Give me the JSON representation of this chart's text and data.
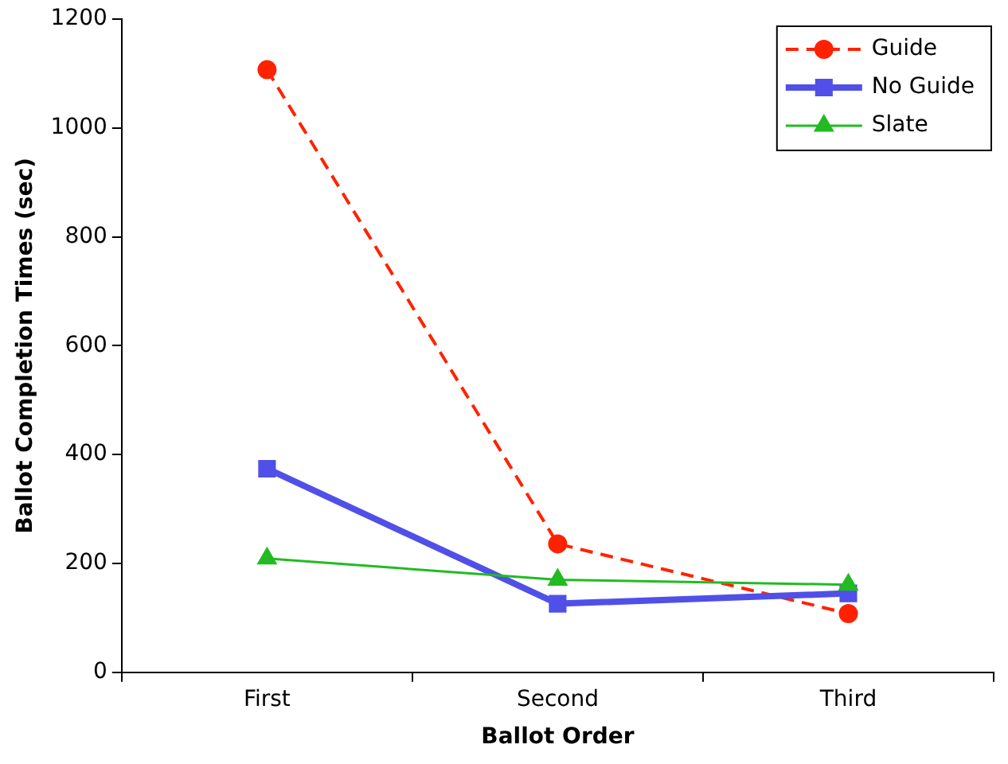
{
  "chart_data": {
    "type": "line",
    "xlabel": "Ballot Order",
    "ylabel": "Ballot Completion Times (sec)",
    "categories": [
      "First",
      "Second",
      "Third"
    ],
    "series": [
      {
        "name": "Guide",
        "color": "#ff2200",
        "values": [
          1107,
          236,
          108
        ],
        "marker": "circle",
        "line_style": "dashed"
      },
      {
        "name": "No Guide",
        "color": "#5050e8",
        "values": [
          374,
          126,
          145
        ],
        "marker": "square",
        "line_style": "solid"
      },
      {
        "name": "Slate",
        "color": "#22bb22",
        "values": [
          209,
          170,
          161
        ],
        "marker": "triangle",
        "line_style": "solid"
      }
    ],
    "ylim": [
      0,
      1200
    ],
    "yticks": [
      0,
      200,
      400,
      600,
      800,
      1000,
      1200
    ],
    "grid": false,
    "legend": "top right"
  }
}
